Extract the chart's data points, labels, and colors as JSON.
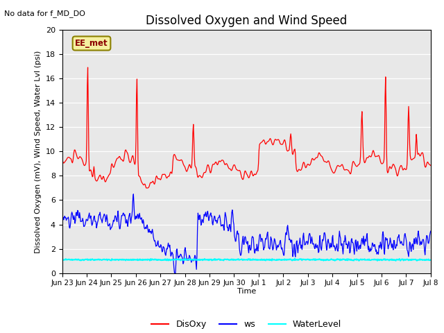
{
  "title": "Dissolved Oxygen and Wind Speed",
  "top_left_text": "No data for f_MD_DO",
  "box_label": "EE_met",
  "ylabel": "Dissolved Oxygen (mV), Wind Speed, Water Lvl (psi)",
  "xlabel": "Time",
  "ylim": [
    0,
    20
  ],
  "yticks": [
    0,
    2,
    4,
    6,
    8,
    10,
    12,
    14,
    16,
    18,
    20
  ],
  "bg_color": "#e8e8e8",
  "legend_labels": [
    "DisOxy",
    "ws",
    "WaterLevel"
  ],
  "disoxy_color": "red",
  "ws_color": "blue",
  "water_color": "cyan",
  "title_fontsize": 12,
  "label_fontsize": 8,
  "tick_labels": [
    "Jun 23",
    "Jun 24",
    "Jun 25",
    "Jun 26",
    "Jun 27",
    "Jun 28",
    "Jun 29",
    "Jun 30",
    "Jul 1",
    "Jul 2",
    "Jul 3",
    "Jul 4",
    "Jul 5",
    "Jul 6",
    "Jul 7",
    "Jul 8"
  ]
}
